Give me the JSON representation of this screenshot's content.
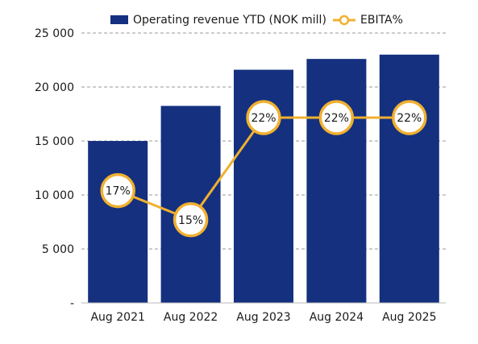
{
  "chart_data": {
    "type": "bar",
    "categories": [
      "Aug 2021",
      "Aug 2022",
      "Aug 2023",
      "Aug 2024",
      "Aug 2025"
    ],
    "series": [
      {
        "name": "Operating revenue YTD (NOK mill)",
        "kind": "bar",
        "axis": "left",
        "color": "#14307f",
        "values": [
          15000,
          18250,
          21600,
          22600,
          23000
        ]
      },
      {
        "name": "EBITA%",
        "kind": "line",
        "axis": "right",
        "color": "#f0b030",
        "values": [
          17,
          15,
          22,
          22,
          22
        ],
        "labels": [
          "17%",
          "15%",
          "22%",
          "22%",
          "22%"
        ]
      }
    ],
    "y_ticks": [
      {
        "value": 0,
        "label": "-"
      },
      {
        "value": 5000,
        "label": "5 000"
      },
      {
        "value": 10000,
        "label": "10 000"
      },
      {
        "value": 15000,
        "label": "15 000"
      },
      {
        "value": 20000,
        "label": "20 000"
      },
      {
        "value": 25000,
        "label": "25 000"
      }
    ],
    "ylim": [
      0,
      25000
    ],
    "y2lim": [
      9.3,
      27.8
    ],
    "grid": true,
    "legend_position": "top"
  }
}
